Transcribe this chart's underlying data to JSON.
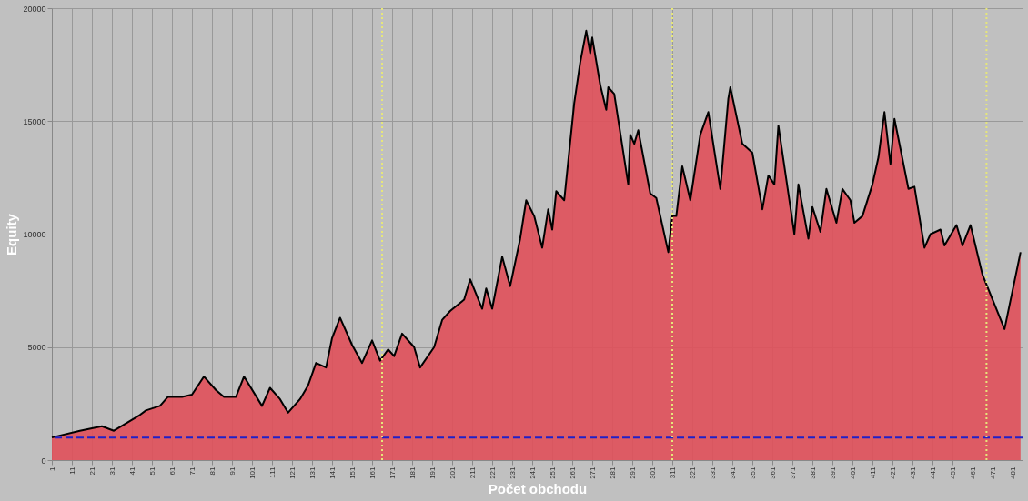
{
  "chart_data": {
    "type": "area",
    "xlabel": "Počet obchodu",
    "ylabel": "Equity",
    "x": [
      1,
      15,
      26,
      32,
      45,
      48,
      55,
      59,
      66,
      71,
      77,
      83,
      87,
      93,
      97,
      106,
      110,
      115,
      119,
      125,
      129,
      133,
      138,
      141,
      145,
      151,
      156,
      161,
      165,
      169,
      172,
      176,
      182,
      185,
      192,
      196,
      200,
      207,
      210,
      216,
      218,
      221,
      226,
      230,
      235,
      238,
      242,
      246,
      249,
      251,
      253,
      257,
      262,
      265,
      268,
      270,
      271,
      275,
      278,
      279,
      282,
      289,
      290,
      292,
      294,
      300,
      303,
      309,
      311,
      313,
      316,
      320,
      325,
      329,
      335,
      339,
      340,
      346,
      351,
      356,
      359,
      362,
      364,
      372,
      374,
      379,
      381,
      385,
      388,
      393,
      396,
      400,
      402,
      406,
      411,
      414,
      417,
      420,
      422,
      429,
      432,
      437,
      440,
      445,
      447,
      453,
      456,
      460,
      466,
      477,
      485
    ],
    "series": [
      {
        "color": "#e0505a",
        "values": [
          1000,
          1300,
          1500,
          1300,
          2000,
          2200,
          2400,
          2800,
          2800,
          2900,
          3700,
          3100,
          2800,
          2800,
          3700,
          2400,
          3200,
          2700,
          2100,
          2700,
          3300,
          4300,
          4100,
          5400,
          6300,
          5100,
          4300,
          5300,
          4400,
          4900,
          4600,
          5600,
          5000,
          4100,
          5000,
          6200,
          6600,
          7100,
          8000,
          6700,
          7600,
          6700,
          9000,
          7700,
          9800,
          11500,
          10800,
          9400,
          11100,
          10200,
          11900,
          11500,
          15800,
          17600,
          19000,
          18000,
          18700,
          16600,
          15500,
          16500,
          16200,
          12200,
          14400,
          14000,
          14600,
          11800,
          11600,
          9200,
          10800,
          10800,
          13000,
          11500,
          14400,
          15400,
          12000,
          16000,
          16500,
          14000,
          13600,
          11100,
          12600,
          12200,
          14800,
          10000,
          12200,
          9800,
          11200,
          10100,
          12000,
          10500,
          12000,
          11500,
          10500,
          10800,
          12200,
          13400,
          15400,
          13100,
          15100,
          12000,
          12100,
          9400,
          10000,
          10200,
          9500,
          10400,
          9500,
          10400,
          8200,
          5800,
          9200
        ]
      }
    ],
    "xlim": [
      1,
      486
    ],
    "xticks": [
      1,
      11,
      21,
      31,
      41,
      51,
      61,
      71,
      81,
      91,
      101,
      111,
      121,
      131,
      141,
      151,
      161,
      171,
      181,
      191,
      201,
      211,
      221,
      231,
      241,
      251,
      261,
      271,
      281,
      291,
      301,
      311,
      321,
      331,
      341,
      351,
      361,
      371,
      381,
      391,
      401,
      411,
      421,
      431,
      441,
      451,
      461,
      471,
      481
    ],
    "ylim": [
      0,
      20000
    ],
    "yticks": [
      0,
      5000,
      10000,
      15000,
      20000
    ],
    "grid": true,
    "ref_lines": [
      {
        "axis": "y",
        "value": 1000,
        "color": "#2020c8",
        "line_style": "dashed"
      },
      {
        "axis": "x",
        "value": 166,
        "color": "#e6e67a",
        "line_style": "dotted"
      },
      {
        "axis": "x",
        "value": 311,
        "color": "#e6e67a",
        "line_style": "dotted"
      },
      {
        "axis": "x",
        "value": 468,
        "color": "#e6e67a",
        "line_style": "dotted"
      }
    ]
  }
}
